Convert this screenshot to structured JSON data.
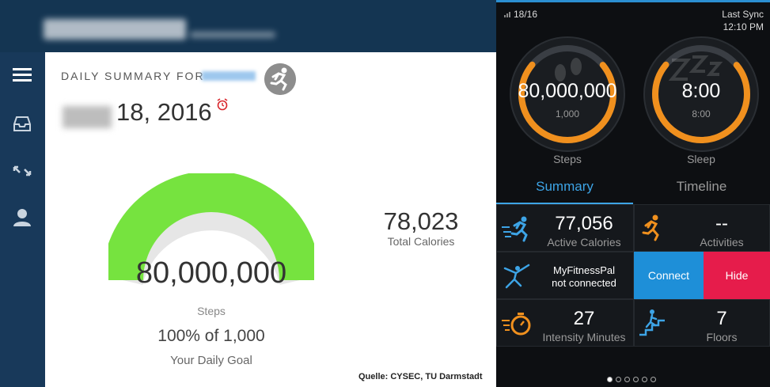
{
  "web": {
    "summary_label": "DAILY SUMMARY FOR",
    "date": "18, 2016",
    "steps_value": "80,000,000",
    "steps_label": "Steps",
    "goal_percent": "100% of 1,000",
    "goal_label": "Your Daily Goal",
    "goal_progress": 1.0,
    "calories_value": "78,023",
    "calories_label": "Total Calories",
    "source": "Quelle: CYSEC, TU Darmstadt",
    "colors": {
      "gauge": "#76e33f",
      "gauge_bg": "#e6e6e6",
      "header": "#143552"
    },
    "nav_icons": [
      "menu-icon",
      "inbox-icon",
      "expand-icon",
      "profile-icon"
    ]
  },
  "phone": {
    "status_date": "18/16",
    "sync_label": "Last Sync",
    "sync_time": "12:10 PM",
    "steps_value": "80,000,000",
    "steps_goal": "1,000",
    "steps_label": "Steps",
    "sleep_value": "8:00",
    "sleep_goal": "8:00",
    "sleep_label": "Sleep",
    "tabs": {
      "summary": "Summary",
      "timeline": "Timeline"
    },
    "active_calories_value": "77,056",
    "active_calories_label": "Active Calories",
    "activities_value": "--",
    "activities_label": "Activities",
    "mfp_line1": "MyFitnessPal",
    "mfp_line2": "not connected",
    "connect_label": "Connect",
    "hide_label": "Hide",
    "intensity_value": "27",
    "intensity_label": "Intensity Minutes",
    "floors_value": "7",
    "floors_label": "Floors",
    "page_count": 6,
    "active_page": 0,
    "colors": {
      "accent": "#3da4e6",
      "ring": "#f0901e",
      "connect": "#1e8fd8",
      "hide": "#e61c4b"
    }
  }
}
